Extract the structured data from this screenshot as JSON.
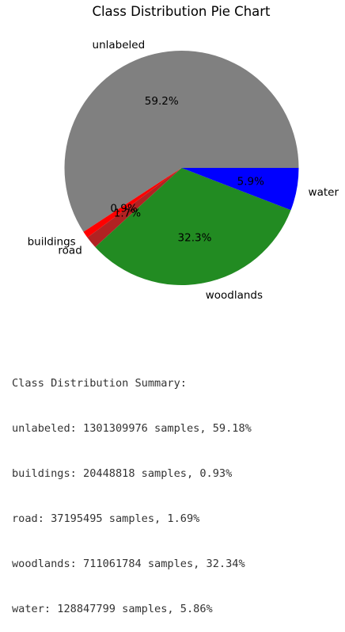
{
  "chart_data": {
    "type": "pie",
    "title": "Class Distribution Pie Chart",
    "categories": [
      "unlabeled",
      "buildings",
      "road",
      "woodlands",
      "water"
    ],
    "values": [
      59.18,
      0.93,
      1.69,
      32.34,
      5.86
    ],
    "pct_labels": [
      "59.2%",
      "0.9%",
      "1.7%",
      "32.3%",
      "5.9%"
    ],
    "colors": [
      "#808080",
      "#ff0000",
      "#b22222",
      "#228b22",
      "#0000ff"
    ]
  },
  "summary": {
    "heading": "Class Distribution Summary:",
    "lines": [
      "unlabeled: 1301309976 samples, 59.18%",
      "buildings: 20448818 samples, 0.93%",
      "road: 37195495 samples, 1.69%",
      "woodlands: 711061784 samples, 32.34%",
      "water: 128847799 samples, 5.86%"
    ]
  }
}
